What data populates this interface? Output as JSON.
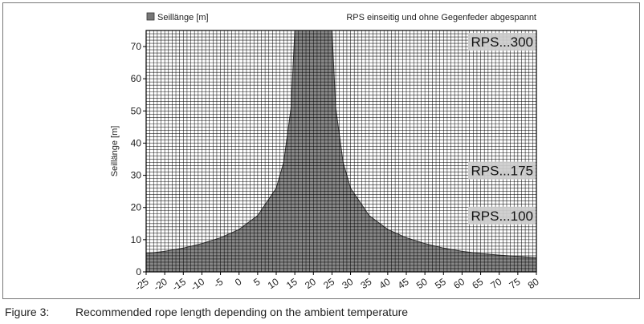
{
  "chart_data": {
    "type": "area",
    "title": "RPS einseitig und ohne Gegenfeder abgespannt",
    "legend": {
      "label": "Seillänge [m]",
      "placement": "top-left",
      "color": "#777777"
    },
    "xlabel": "",
    "ylabel": "Seillänge [m]",
    "xlim": [
      -25,
      80
    ],
    "ylim": [
      0,
      75
    ],
    "grid": true,
    "x_ticks": [
      -25,
      -20,
      -15,
      -10,
      -5,
      0,
      5,
      10,
      15,
      20,
      25,
      30,
      35,
      40,
      45,
      50,
      55,
      60,
      65,
      70,
      75,
      80
    ],
    "x_tick_labels": [
      "-25",
      "-20",
      "-15",
      "-10",
      "-5",
      "0",
      "5",
      "10",
      "15",
      "20",
      "25",
      "30",
      "35",
      "40",
      "45",
      "50",
      "55",
      "60",
      "65",
      "70",
      "75",
      "80"
    ],
    "y_ticks": [
      0,
      10,
      20,
      30,
      40,
      50,
      60,
      70
    ],
    "y_tick_labels": [
      "0",
      "10",
      "20",
      "30",
      "40",
      "50",
      "60",
      "70"
    ],
    "series": [
      {
        "name": "Seillänge [m]",
        "x": [
          -25,
          -20,
          -15,
          -10,
          -5,
          0,
          5,
          10,
          12,
          14,
          15,
          16,
          24,
          25,
          26,
          28,
          30,
          35,
          40,
          45,
          50,
          55,
          60,
          65,
          70,
          75,
          80
        ],
        "values": [
          5.7,
          6.4,
          7.4,
          8.8,
          10.6,
          13.2,
          17.5,
          26,
          34,
          51,
          75,
          75,
          75,
          75,
          51,
          34,
          26,
          17.5,
          13.2,
          10.6,
          8.8,
          7.4,
          6.4,
          5.7,
          5.2,
          4.8,
          4.4
        ]
      }
    ],
    "annotations": [
      {
        "text": "RPS...300",
        "y": 71.5
      },
      {
        "text": "RPS...175",
        "y": 31.5
      },
      {
        "text": "RPS...100",
        "y": 17.5
      }
    ],
    "fill_color": "#888888",
    "grid_color": "#000000",
    "label_bg_color": "#cccccc"
  },
  "caption": {
    "number": "Figure 3:",
    "text": "Recommended rope length depending on the ambient temperature"
  }
}
